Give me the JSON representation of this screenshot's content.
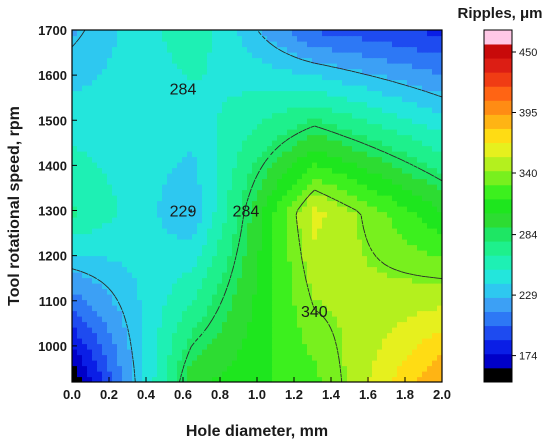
{
  "chart_data": {
    "type": "heatmap",
    "subtype": "contour",
    "xlabel": "Hole diameter, mm",
    "ylabel": "Tool rotational speed, rpm",
    "xlim": [
      0.0,
      2.0
    ],
    "ylim": [
      920,
      1700
    ],
    "x_ticks": [
      "0.0",
      "0.2",
      "0.4",
      "0.6",
      "0.8",
      "1.0",
      "1.2",
      "1.4",
      "1.6",
      "1.8",
      "2.0"
    ],
    "y_ticks": [
      "1000",
      "1100",
      "1200",
      "1300",
      "1400",
      "1500",
      "1600",
      "1700"
    ],
    "colorbar": {
      "title": "Ripples, μm",
      "min": 150,
      "max": 470,
      "ticks": [
        "174",
        "229",
        "284",
        "340",
        "395",
        "450"
      ],
      "colors": [
        "#000000",
        "#0000c8",
        "#0a1ee6",
        "#1e4bf0",
        "#2d78f5",
        "#3ca0f5",
        "#2ec8f0",
        "#23e6dc",
        "#1ef0b4",
        "#1ef08c",
        "#1ee664",
        "#2ddc32",
        "#1ee61e",
        "#3cf01e",
        "#78f01e",
        "#b4f01e",
        "#e6f01e",
        "#ffdc14",
        "#ffb414",
        "#ff8c14",
        "#ff6414",
        "#f03c14",
        "#dc1e14",
        "#c80a0a",
        "#ffc8e6"
      ]
    },
    "contour_labels": [
      {
        "text": "284",
        "x": 0.6,
        "y": 1570
      },
      {
        "text": "229",
        "x": 0.6,
        "y": 1300
      },
      {
        "text": "284",
        "x": 0.94,
        "y": 1300
      },
      {
        "text": "340",
        "x": 1.31,
        "y": 1077
      }
    ],
    "grid": {
      "x": [
        0.0,
        0.65,
        1.31,
        2.0
      ],
      "y": [
        920,
        1295,
        1700
      ],
      "values": [
        [
          150,
          300,
          325,
          395
        ],
        [
          268,
          228,
          360,
          305
        ],
        [
          225,
          262,
          200,
          185
        ]
      ]
    },
    "contour_levels": [
      229,
      284,
      340
    ]
  }
}
